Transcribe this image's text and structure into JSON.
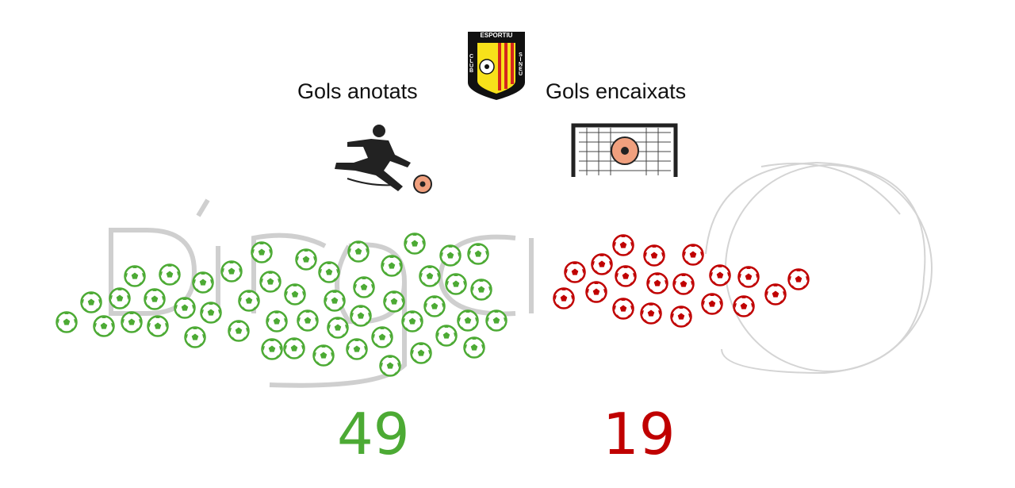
{
  "club": {
    "name_top": "ESPORTIU",
    "name_left": "CLUB",
    "name_right": "SINEU"
  },
  "scored": {
    "label": "Gols anotats",
    "value": "49",
    "count": 49,
    "color": "#4caa34",
    "icon": "kicking-player-icon"
  },
  "conceded": {
    "label": "Gols encaixats",
    "value": "19",
    "count": 19,
    "color": "#c00000",
    "icon": "ball-in-goal-icon"
  },
  "watermark": "dingola"
}
